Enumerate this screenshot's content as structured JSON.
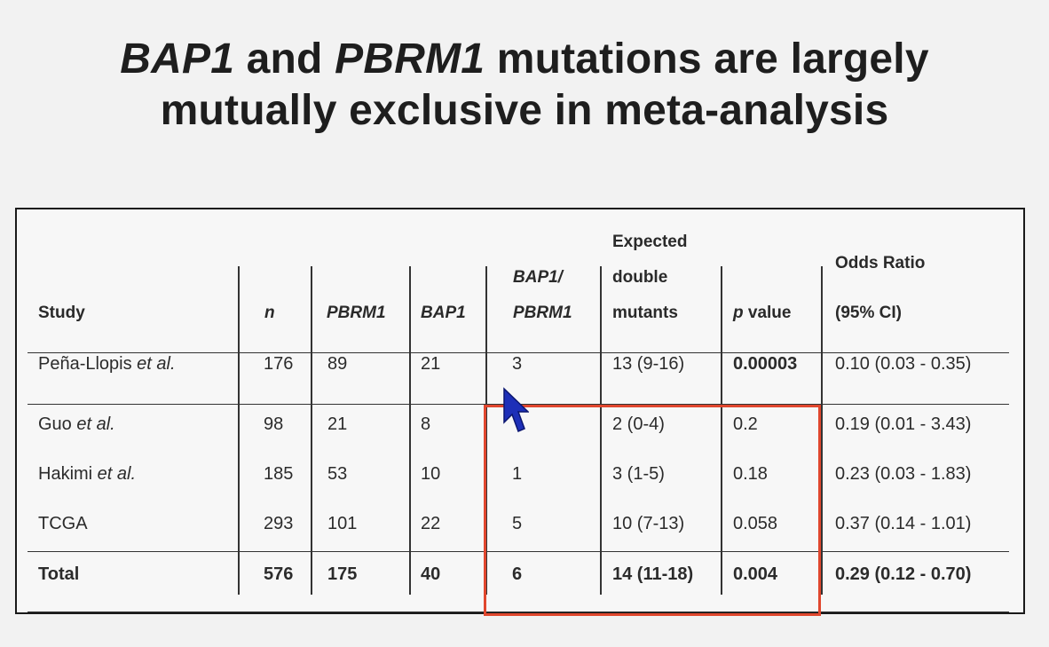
{
  "title": {
    "part1": "BAP1",
    "part2": " and ",
    "part3": "PBRM1",
    "part4": " mutations are largely",
    "line2": "mutually exclusive in meta-analysis"
  },
  "headers": {
    "study": "Study",
    "n": "n",
    "pbrm1": "PBRM1",
    "bap1": "BAP1",
    "double_line1": "BAP1/",
    "double_line2": "PBRM1",
    "expected_line1": "Expected",
    "expected_line2": "double",
    "expected_line3": "mutants",
    "p_italic": "p",
    "p_rest": " value",
    "or_line1": "Odds Ratio",
    "or_line2": "(95% CI)"
  },
  "rows": [
    {
      "study": "Peña-Llopis",
      "study_suffix": " et al.",
      "n": "176",
      "pbrm1": "89",
      "bap1": "21",
      "double": "3",
      "expected": "13 (9-16)",
      "p": "0.00003",
      "or": "0.10 (0.03 - 0.35)"
    },
    {
      "study": "Guo",
      "study_suffix": " et al.",
      "n": "98",
      "pbrm1": "21",
      "bap1": "8",
      "double": "",
      "expected": "2 (0-4)",
      "p": "0.2",
      "or": "0.19 (0.01 - 3.43)"
    },
    {
      "study": "Hakimi",
      "study_suffix": " et al.",
      "n": "185",
      "pbrm1": "53",
      "bap1": "10",
      "double": "1",
      "expected": "3 (1-5)",
      "p": "0.18",
      "or": "0.23 (0.03 - 1.83)"
    },
    {
      "study": "TCGA",
      "study_suffix": "",
      "n": "293",
      "pbrm1": "101",
      "bap1": "22",
      "double": "5",
      "expected": "10 (7-13)",
      "p": "0.058",
      "or": "0.37 (0.14 - 1.01)"
    }
  ],
  "total": {
    "study": "Total",
    "n": "576",
    "pbrm1": "175",
    "bap1": "40",
    "double": "6",
    "expected": "14 (11-18)",
    "p": "0.004",
    "or": "0.29 (0.12 - 0.70)"
  },
  "colors": {
    "highlight": "#e0472e",
    "cursor": "#1d2fb8"
  }
}
